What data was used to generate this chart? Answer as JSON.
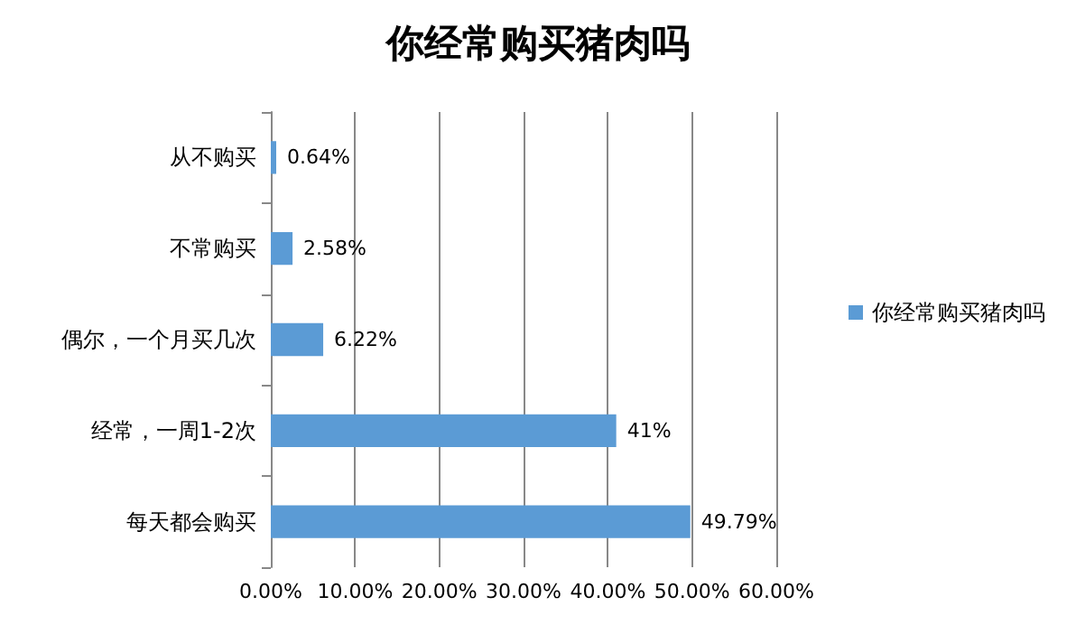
{
  "chart_data": {
    "type": "bar",
    "orientation": "horizontal",
    "title": "你经常购买猪肉吗",
    "categories": [
      "从不购买",
      "不常购买",
      "偶尔，一个月买几次",
      "经常，一周1-2次",
      "每天都会购买"
    ],
    "series": [
      {
        "name": "你经常购买猪肉吗",
        "color": "#5b9bd5",
        "values": [
          0.64,
          2.58,
          6.22,
          41,
          49.79
        ],
        "value_labels": [
          "0.64%",
          "2.58%",
          "6.22%",
          "41%",
          "49.79%"
        ]
      }
    ],
    "xlim": [
      0,
      60
    ],
    "xticks": [
      {
        "value": 0,
        "label": "0.00%"
      },
      {
        "value": 10,
        "label": "10.00%"
      },
      {
        "value": 20,
        "label": "20.00%"
      },
      {
        "value": 30,
        "label": "30.00%"
      },
      {
        "value": 40,
        "label": "40.00%"
      },
      {
        "value": 50,
        "label": "50.00%"
      },
      {
        "value": 60,
        "label": "60.00%"
      }
    ],
    "grid": "x",
    "legend": "right"
  }
}
